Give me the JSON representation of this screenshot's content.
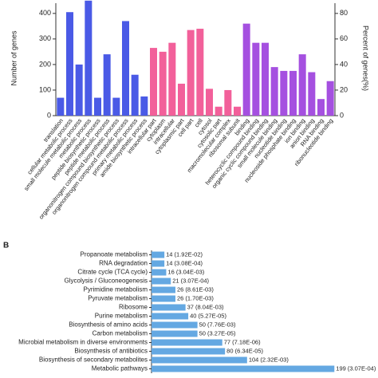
{
  "chart_data": [
    {
      "type": "bar",
      "ylabel": "Number of genes",
      "y2label": "Percent of genes(%)",
      "categories": [
        "translation",
        "cellular metabolic process",
        "small molecule metabolic process",
        "metabolic process",
        "peptide biosynthetic process",
        "peptide metabolic process",
        "organonitrogen compound biosynthetic process",
        "organonitrogen compound metabolic process",
        "primary metabolic process",
        "amide biosynthetic process",
        "intracellular part",
        "cytoplasm",
        "intracellular",
        "cytoplasmic part",
        "cell part",
        "cell",
        "cytosol",
        "cytosolic part",
        "macromolecular complex",
        "ribosomal subunit",
        "binding",
        "heterocyclic compound binding",
        "organic cyclic compound binding",
        "small molecule binding",
        "nucleotide binding",
        "nucleoside phosphate binding",
        "ion binding",
        "anion binding",
        "RNA binding",
        "ribonucleotide binding"
      ],
      "values": [
        70,
        405,
        200,
        450,
        70,
        240,
        70,
        370,
        160,
        75,
        265,
        250,
        285,
        125,
        335,
        340,
        105,
        35,
        100,
        35,
        360,
        285,
        285,
        190,
        175,
        175,
        240,
        170,
        65,
        135
      ],
      "colors": [
        "#4a5ae6",
        "#4a5ae6",
        "#4a5ae6",
        "#4a5ae6",
        "#4a5ae6",
        "#4a5ae6",
        "#4a5ae6",
        "#4a5ae6",
        "#4a5ae6",
        "#4a5ae6",
        "#f2609a",
        "#f2609a",
        "#f2609a",
        "#f2609a",
        "#f2609a",
        "#f2609a",
        "#f2609a",
        "#f2609a",
        "#f2609a",
        "#f2609a",
        "#a550e0",
        "#a550e0",
        "#a550e0",
        "#a550e0",
        "#a550e0",
        "#a550e0",
        "#a550e0",
        "#a550e0",
        "#a550e0",
        "#a550e0"
      ],
      "ylim": [
        0,
        440
      ],
      "yticks": [
        0,
        100,
        200,
        300,
        400
      ],
      "y2lim": [
        0,
        88
      ],
      "y2ticks": [
        0,
        20,
        40,
        60,
        80
      ]
    },
    {
      "type": "barh",
      "panel_label": "B",
      "categories": [
        "Propanoate metabolism",
        "RNA degradation",
        "Citrate cycle (TCA cycle)",
        "Glycolysis / Gluconeogenesis",
        "Pyrimidine metabolism",
        "Pyruvate metabolism",
        "Ribosome",
        "Purine metabolism",
        "Biosynthesis of amino acids",
        "Carbon metabolism",
        "Microbial metabolism in diverse environments",
        "Biosynthesis of antibiotics",
        "Biosynthesis of secondary metabolites",
        "Metabolic pathways"
      ],
      "values": [
        14,
        14,
        16,
        21,
        26,
        26,
        37,
        40,
        50,
        50,
        77,
        80,
        104,
        199
      ],
      "value_labels": [
        "14 (1.92E-02)",
        "14 (3.08E-04)",
        "16 (3.04E-03)",
        "21 (3.07E-04)",
        "26 (8.61E-03)",
        "26 (1.70E-03)",
        "37 (8.04E-03)",
        "40 (5.27E-05)",
        "50 (7.76E-03)",
        "50 (3.27E-05)",
        "77 (7.18E-06)",
        "80 (6.34E-05)",
        "104 (2.32E-03)",
        "199 (3.07E-04)"
      ],
      "color": "#64a8e2",
      "xlim": [
        0,
        230
      ]
    }
  ]
}
